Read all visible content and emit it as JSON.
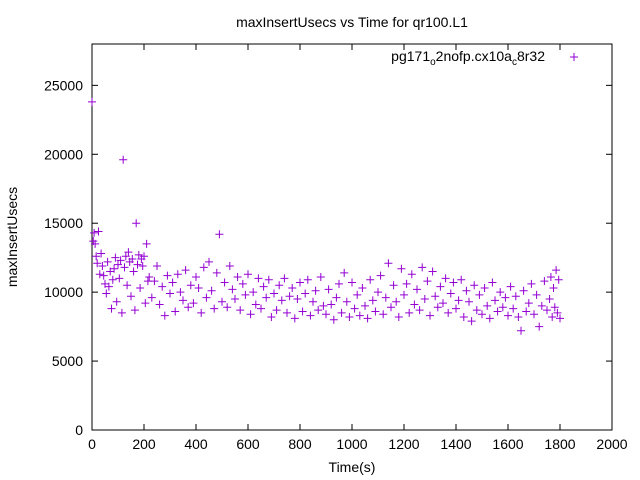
{
  "chart_data": {
    "type": "scatter",
    "title": "maxInsertUsecs vs Time for qr100.L1",
    "xlabel": "Time(s)",
    "ylabel": "maxInsertUsecs",
    "xlim": [
      0,
      2000
    ],
    "ylim": [
      0,
      28000
    ],
    "xticks": [
      "0",
      "200",
      "400",
      "600",
      "800",
      "1000",
      "1200",
      "1400",
      "1600",
      "1800",
      "2000"
    ],
    "yticks": [
      "0",
      "5000",
      "10000",
      "15000",
      "20000",
      "25000"
    ],
    "grid": false,
    "legend_position": "top-right",
    "marker": "+",
    "color": "#9400d3",
    "series": [
      {
        "name": "pg171_o2nofp.cx10a_c8r32",
        "legend_main": "pg171",
        "legend_sub1": "o",
        "legend_mid": "2nofp.cx10a",
        "legend_sub2": "c",
        "legend_end": "8r32",
        "points": [
          [
            0,
            23800
          ],
          [
            5,
            13700
          ],
          [
            8,
            14300
          ],
          [
            12,
            13500
          ],
          [
            16,
            12600
          ],
          [
            20,
            12100
          ],
          [
            25,
            14400
          ],
          [
            30,
            11300
          ],
          [
            35,
            12800
          ],
          [
            40,
            11900
          ],
          [
            45,
            11200
          ],
          [
            50,
            10600
          ],
          [
            55,
            9900
          ],
          [
            60,
            12200
          ],
          [
            65,
            10400
          ],
          [
            70,
            11500
          ],
          [
            75,
            8800
          ],
          [
            80,
            10900
          ],
          [
            85,
            11700
          ],
          [
            90,
            12500
          ],
          [
            95,
            9300
          ],
          [
            100,
            12000
          ],
          [
            105,
            11000
          ],
          [
            110,
            12300
          ],
          [
            115,
            8500
          ],
          [
            120,
            19600
          ],
          [
            125,
            11800
          ],
          [
            130,
            12600
          ],
          [
            135,
            10500
          ],
          [
            140,
            12900
          ],
          [
            145,
            12200
          ],
          [
            150,
            9700
          ],
          [
            155,
            12400
          ],
          [
            160,
            11500
          ],
          [
            165,
            8700
          ],
          [
            170,
            15000
          ],
          [
            175,
            12000
          ],
          [
            180,
            12700
          ],
          [
            185,
            10300
          ],
          [
            190,
            12400
          ],
          [
            195,
            11900
          ],
          [
            200,
            12600
          ],
          [
            205,
            9200
          ],
          [
            210,
            13500
          ],
          [
            215,
            10800
          ],
          [
            220,
            11100
          ],
          [
            230,
            9600
          ],
          [
            240,
            10800
          ],
          [
            250,
            11900
          ],
          [
            260,
            9100
          ],
          [
            270,
            10400
          ],
          [
            280,
            8300
          ],
          [
            290,
            11200
          ],
          [
            300,
            9900
          ],
          [
            310,
            10700
          ],
          [
            320,
            8600
          ],
          [
            330,
            11300
          ],
          [
            340,
            10000
          ],
          [
            350,
            9400
          ],
          [
            360,
            11600
          ],
          [
            370,
            8900
          ],
          [
            380,
            10500
          ],
          [
            390,
            9200
          ],
          [
            400,
            11100
          ],
          [
            410,
            10300
          ],
          [
            420,
            8500
          ],
          [
            430,
            11800
          ],
          [
            440,
            9600
          ],
          [
            450,
            12200
          ],
          [
            460,
            10100
          ],
          [
            470,
            8800
          ],
          [
            480,
            11400
          ],
          [
            490,
            14200
          ],
          [
            500,
            9300
          ],
          [
            510,
            10700
          ],
          [
            520,
            8900
          ],
          [
            530,
            11900
          ],
          [
            540,
            10200
          ],
          [
            550,
            9500
          ],
          [
            560,
            11100
          ],
          [
            570,
            8700
          ],
          [
            580,
            10600
          ],
          [
            590,
            9800
          ],
          [
            600,
            11300
          ],
          [
            610,
            8400
          ],
          [
            620,
            10000
          ],
          [
            630,
            9100
          ],
          [
            640,
            11000
          ],
          [
            650,
            8800
          ],
          [
            660,
            10400
          ],
          [
            670,
            9600
          ],
          [
            680,
            10900
          ],
          [
            690,
            8200
          ],
          [
            700,
            9900
          ],
          [
            710,
            8700
          ],
          [
            720,
            10500
          ],
          [
            730,
            9400
          ],
          [
            740,
            11000
          ],
          [
            750,
            8500
          ],
          [
            760,
            9700
          ],
          [
            770,
            10300
          ],
          [
            780,
            8100
          ],
          [
            790,
            9500
          ],
          [
            800,
            10700
          ],
          [
            810,
            8600
          ],
          [
            820,
            9900
          ],
          [
            830,
            10900
          ],
          [
            840,
            8300
          ],
          [
            850,
            9300
          ],
          [
            860,
            10100
          ],
          [
            870,
            8700
          ],
          [
            880,
            11100
          ],
          [
            890,
            9000
          ],
          [
            900,
            8400
          ],
          [
            910,
            10200
          ],
          [
            920,
            9100
          ],
          [
            930,
            8000
          ],
          [
            940,
            9600
          ],
          [
            950,
            10600
          ],
          [
            960,
            8500
          ],
          [
            970,
            11400
          ],
          [
            980,
            9300
          ],
          [
            990,
            8200
          ],
          [
            1000,
            10700
          ],
          [
            1010,
            8800
          ],
          [
            1020,
            9800
          ],
          [
            1030,
            8300
          ],
          [
            1040,
            10300
          ],
          [
            1050,
            9000
          ],
          [
            1060,
            8100
          ],
          [
            1070,
            10900
          ],
          [
            1080,
            9400
          ],
          [
            1090,
            8600
          ],
          [
            1100,
            10000
          ],
          [
            1110,
            11200
          ],
          [
            1120,
            8400
          ],
          [
            1130,
            9600
          ],
          [
            1140,
            12100
          ],
          [
            1150,
            8900
          ],
          [
            1160,
            10500
          ],
          [
            1170,
            9300
          ],
          [
            1180,
            8200
          ],
          [
            1190,
            11700
          ],
          [
            1200,
            9800
          ],
          [
            1210,
            10600
          ],
          [
            1220,
            8500
          ],
          [
            1230,
            11300
          ],
          [
            1240,
            9100
          ],
          [
            1250,
            10200
          ],
          [
            1260,
            8700
          ],
          [
            1270,
            11800
          ],
          [
            1280,
            9500
          ],
          [
            1290,
            10800
          ],
          [
            1300,
            8300
          ],
          [
            1310,
            11500
          ],
          [
            1320,
            9700
          ],
          [
            1330,
            8900
          ],
          [
            1340,
            10400
          ],
          [
            1350,
            9200
          ],
          [
            1360,
            11000
          ],
          [
            1370,
            8500
          ],
          [
            1380,
            9900
          ],
          [
            1390,
            10700
          ],
          [
            1400,
            8800
          ],
          [
            1410,
            9400
          ],
          [
            1420,
            10900
          ],
          [
            1430,
            8200
          ],
          [
            1440,
            10100
          ],
          [
            1450,
            9300
          ],
          [
            1460,
            7900
          ],
          [
            1470,
            10500
          ],
          [
            1480,
            8700
          ],
          [
            1490,
            9800
          ],
          [
            1500,
            8400
          ],
          [
            1510,
            10300
          ],
          [
            1520,
            9000
          ],
          [
            1530,
            8100
          ],
          [
            1540,
            10700
          ],
          [
            1550,
            9400
          ],
          [
            1560,
            8600
          ],
          [
            1570,
            10000
          ],
          [
            1580,
            8900
          ],
          [
            1590,
            9600
          ],
          [
            1600,
            8300
          ],
          [
            1610,
            10400
          ],
          [
            1620,
            8800
          ],
          [
            1630,
            9700
          ],
          [
            1640,
            8200
          ],
          [
            1650,
            7200
          ],
          [
            1660,
            10100
          ],
          [
            1670,
            8600
          ],
          [
            1680,
            9200
          ],
          [
            1690,
            10600
          ],
          [
            1700,
            8400
          ],
          [
            1710,
            9800
          ],
          [
            1720,
            7500
          ],
          [
            1730,
            9000
          ],
          [
            1740,
            10800
          ],
          [
            1750,
            8700
          ],
          [
            1760,
            9500
          ],
          [
            1765,
            11100
          ],
          [
            1770,
            8200
          ],
          [
            1775,
            10300
          ],
          [
            1780,
            8900
          ],
          [
            1785,
            11600
          ],
          [
            1790,
            8500
          ],
          [
            1795,
            10900
          ],
          [
            1800,
            8100
          ]
        ]
      }
    ]
  }
}
